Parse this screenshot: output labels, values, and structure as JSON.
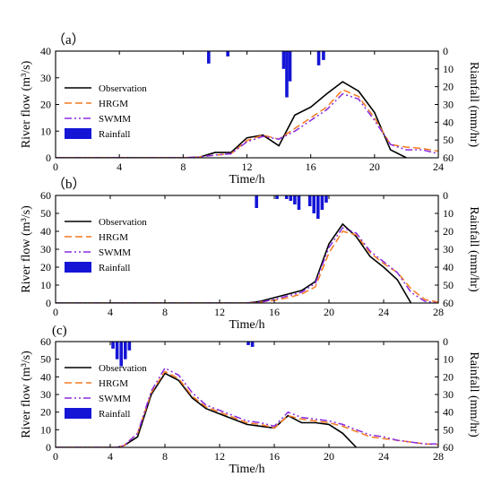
{
  "chart_data": [
    {
      "type": "line",
      "panel_label": "（a）",
      "xlabel": "Time/h",
      "ylabel": "River flow (m³/s)",
      "ylabel_right": "Rianfall (mm/hr)",
      "xlim": [
        0,
        24
      ],
      "ylim": [
        0,
        40
      ],
      "ylim_right": [
        60,
        0
      ],
      "xticks": [
        0,
        4,
        8,
        12,
        16,
        20,
        24
      ],
      "yticks": [
        0,
        10,
        20,
        30,
        40
      ],
      "yticks_right": [
        0,
        10,
        20,
        30,
        40,
        50,
        60
      ],
      "legend": {
        "position": "left-center",
        "entries": [
          "Observation",
          "HRGM",
          "SWMM",
          "Rainfall"
        ]
      },
      "series": [
        {
          "name": "Observation",
          "color": "#000000",
          "style": "solid",
          "x": [
            0,
            8,
            9,
            10,
            11,
            12,
            13,
            14,
            15,
            16,
            17,
            18,
            19,
            20,
            21,
            22
          ],
          "y": [
            0,
            0,
            0.2,
            2,
            2,
            7.5,
            8.5,
            4.5,
            16,
            19,
            24,
            28.5,
            25,
            17,
            3,
            0
          ]
        },
        {
          "name": "HRGM",
          "color": "#f47a20",
          "style": "dashed",
          "x": [
            0,
            8,
            9,
            10,
            11,
            12,
            13,
            14,
            15,
            16,
            17,
            18,
            19,
            20,
            21,
            22,
            23,
            24
          ],
          "y": [
            0,
            0,
            0.3,
            1,
            1.5,
            6.5,
            8.5,
            7,
            11,
            15,
            19,
            25.5,
            23,
            15,
            5,
            4,
            3.5,
            2.5
          ]
        },
        {
          "name": "SWMM",
          "color": "#8a2be2",
          "style": "dashdotdot",
          "x": [
            0,
            8,
            9,
            10,
            11,
            12,
            13,
            14,
            15,
            16,
            17,
            18,
            19,
            20,
            21,
            22,
            23,
            24
          ],
          "y": [
            0,
            0,
            0.3,
            1,
            1.5,
            6,
            8,
            7,
            10,
            14,
            18,
            24,
            22,
            14,
            5,
            3,
            3,
            1.5
          ]
        }
      ],
      "rainfall": {
        "name": "Rainfall",
        "color": "#1515d6",
        "x": [
          9.6,
          10.8,
          14.3,
          14.5,
          14.7,
          16.5,
          16.8
        ],
        "values": [
          7,
          3,
          10,
          26,
          17,
          8,
          5
        ]
      }
    },
    {
      "type": "line",
      "panel_label": "（b）",
      "xlabel": "Time/h",
      "ylabel": "River flow (m³/s)",
      "ylabel_right": "Rainfall (mm/hr)",
      "xlim": [
        0,
        28
      ],
      "ylim": [
        0,
        60
      ],
      "ylim_right": [
        60,
        0
      ],
      "xticks": [
        0,
        4,
        8,
        12,
        16,
        20,
        24,
        28
      ],
      "yticks": [
        0,
        10,
        20,
        30,
        40,
        50,
        60
      ],
      "yticks_right": [
        0,
        10,
        20,
        30,
        40,
        50,
        60
      ],
      "legend": {
        "position": "left-center",
        "entries": [
          "Observation",
          "HRGM",
          "SWMM",
          "Rainfall"
        ]
      },
      "series": [
        {
          "name": "Observation",
          "color": "#000000",
          "style": "solid",
          "x": [
            0,
            14,
            15,
            16,
            17,
            18,
            19,
            20,
            21,
            22,
            23,
            24,
            25,
            26
          ],
          "y": [
            0,
            0,
            1,
            3,
            5,
            7,
            12,
            33,
            44,
            37,
            26,
            20,
            13,
            0
          ]
        },
        {
          "name": "HRGM",
          "color": "#f47a20",
          "style": "dashed",
          "x": [
            0,
            14,
            15,
            16,
            17,
            18,
            19,
            20,
            21,
            22,
            23,
            24,
            25,
            26,
            27,
            28
          ],
          "y": [
            0,
            0,
            0.5,
            1.5,
            3,
            5,
            9,
            28,
            40,
            38,
            28,
            22,
            17,
            8,
            2,
            0.5
          ]
        },
        {
          "name": "SWMM",
          "color": "#8a2be2",
          "style": "dashdotdot",
          "x": [
            0,
            14,
            15,
            16,
            17,
            18,
            19,
            20,
            21,
            22,
            23,
            24,
            25,
            26,
            27,
            28
          ],
          "y": [
            0,
            0,
            0.5,
            2,
            4,
            6,
            11,
            31,
            42,
            39,
            29,
            23,
            17,
            6,
            1,
            0
          ]
        }
      ],
      "rainfall": {
        "name": "Rainfall",
        "color": "#1515d6",
        "x": [
          14.7,
          16.2,
          16.9,
          17.2,
          17.5,
          17.8,
          18.6,
          18.9,
          19.2,
          19.5,
          19.8
        ],
        "values": [
          7,
          2,
          2,
          3,
          5,
          8,
          6,
          10,
          13,
          8,
          4
        ]
      }
    },
    {
      "type": "line",
      "panel_label": "(c)",
      "xlabel": "Time/h",
      "ylabel": "River flow (m³/s)",
      "ylabel_right": "Rainfall (mm/hr)",
      "xlim": [
        0,
        28
      ],
      "ylim": [
        0,
        60
      ],
      "ylim_right": [
        60,
        0
      ],
      "xticks": [
        0,
        4,
        8,
        12,
        16,
        20,
        24,
        28
      ],
      "yticks": [
        0,
        10,
        20,
        30,
        40,
        50,
        60
      ],
      "yticks_right": [
        0,
        10,
        20,
        30,
        40,
        50,
        60
      ],
      "legend": {
        "position": "left-center",
        "entries": [
          "Observation",
          "HRGM",
          "SWMM",
          "Rainfall"
        ]
      },
      "series": [
        {
          "name": "Observation",
          "color": "#000000",
          "style": "solid",
          "x": [
            0,
            4.5,
            5,
            6,
            7,
            8,
            9,
            10,
            11,
            12,
            13,
            14,
            15,
            16,
            17,
            18,
            19,
            20,
            21,
            22
          ],
          "y": [
            0,
            0,
            1,
            6,
            30,
            42,
            38,
            28,
            22,
            19,
            16,
            13,
            12,
            11,
            18,
            14,
            14,
            13,
            8,
            0
          ]
        },
        {
          "name": "HRGM",
          "color": "#f47a20",
          "style": "dashed",
          "x": [
            0,
            4.5,
            5,
            6,
            7,
            8,
            9,
            10,
            11,
            12,
            13,
            14,
            15,
            16,
            17,
            18,
            19,
            20,
            21,
            22,
            23,
            24,
            25,
            26,
            27,
            28
          ],
          "y": [
            0,
            0,
            1,
            8,
            31,
            43,
            39,
            29,
            23,
            20,
            17,
            14,
            13,
            11,
            18,
            16,
            15,
            14,
            12,
            9,
            6,
            5,
            4,
            3,
            2,
            1.5
          ]
        },
        {
          "name": "SWMM",
          "color": "#8a2be2",
          "style": "dashdotdot",
          "x": [
            0,
            4.5,
            5,
            6,
            7,
            8,
            9,
            10,
            11,
            12,
            13,
            14,
            15,
            16,
            17,
            18,
            19,
            20,
            21,
            22,
            23,
            24,
            25,
            26,
            27,
            28
          ],
          "y": [
            0,
            0,
            1,
            8,
            32,
            45,
            41,
            31,
            24,
            21,
            18,
            15,
            14,
            12,
            20,
            17,
            16,
            15,
            13,
            10,
            7,
            6,
            4,
            3,
            2,
            2
          ]
        }
      ],
      "rainfall": {
        "name": "Rainfall",
        "color": "#1515d6",
        "x": [
          4.2,
          4.5,
          4.8,
          5.1,
          5.4,
          14.1,
          14.4
        ],
        "values": [
          4,
          10,
          14,
          10,
          5,
          2,
          3
        ]
      }
    }
  ]
}
